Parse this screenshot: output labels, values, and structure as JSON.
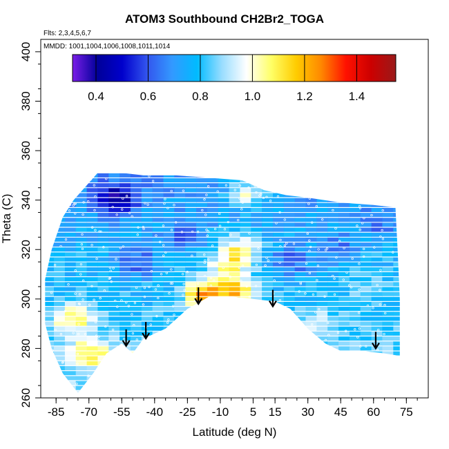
{
  "chart_data": {
    "type": "heatmap",
    "title": "ATOM3 Southbound CH2Br2_TOGA",
    "xlabel": "Latitude (deg N)",
    "ylabel": "Theta (C)",
    "flights_note": "Flts: 2,3,4,5,6,7",
    "dates_note": "MMDD: 1001,1004,1006,1008,1011,1014",
    "xlim": [
      -92,
      85
    ],
    "ylim": [
      260,
      405
    ],
    "x_ticks": [
      -85,
      -70,
      -55,
      -40,
      -25,
      -10,
      5,
      15,
      30,
      45,
      60,
      75
    ],
    "x_tick_labels": [
      "-85",
      "-70",
      "-55",
      "-40",
      "-25",
      "-10",
      "5",
      "15",
      "30",
      "45",
      "60",
      "75"
    ],
    "y_ticks": [
      260,
      280,
      300,
      320,
      340,
      360,
      380,
      400
    ],
    "y_tick_labels": [
      "260",
      "280",
      "300",
      "320",
      "340",
      "360",
      "380",
      "400"
    ],
    "colorbar": {
      "range": [
        0.31,
        1.55
      ],
      "ticks": [
        0.4,
        0.6,
        0.8,
        1.0,
        1.2,
        1.4
      ],
      "tick_labels": [
        "0.4",
        "0.6",
        "0.8",
        "1.0",
        "1.2",
        "1.4"
      ],
      "colors": [
        "#7a1ee8",
        "#000099",
        "#0000cc",
        "#3355ee",
        "#3399ff",
        "#00bbff",
        "#99ddff",
        "#ffffff",
        "#ffff66",
        "#ffcc00",
        "#ff8800",
        "#ff1100",
        "#cc0000",
        "#9a1a1a"
      ]
    },
    "domain_upper": [
      [
        -90,
        308
      ],
      [
        -87,
        320
      ],
      [
        -82,
        333
      ],
      [
        -77,
        340
      ],
      [
        -72,
        345
      ],
      [
        -66,
        351
      ],
      [
        -55,
        351
      ],
      [
        -45,
        350
      ],
      [
        -30,
        350
      ],
      [
        -15,
        349
      ],
      [
        0,
        348
      ],
      [
        10,
        344
      ],
      [
        20,
        342
      ],
      [
        30,
        341
      ],
      [
        45,
        339
      ],
      [
        60,
        338
      ],
      [
        70,
        337
      ],
      [
        71,
        320
      ],
      [
        72,
        300
      ],
      [
        72,
        277
      ]
    ],
    "domain_lower": [
      [
        -90,
        308
      ],
      [
        -90,
        290
      ],
      [
        -87,
        280
      ],
      [
        -82,
        270
      ],
      [
        -75,
        262
      ],
      [
        -68,
        270
      ],
      [
        -62,
        278
      ],
      [
        -55,
        282
      ],
      [
        -50,
        278
      ],
      [
        -45,
        284
      ],
      [
        -35,
        288
      ],
      [
        -25,
        296
      ],
      [
        -15,
        301
      ],
      [
        -5,
        301
      ],
      [
        5,
        300
      ],
      [
        15,
        299
      ],
      [
        22,
        296
      ],
      [
        30,
        288
      ],
      [
        38,
        282
      ],
      [
        45,
        279
      ],
      [
        55,
        279
      ],
      [
        65,
        278
      ],
      [
        72,
        277
      ]
    ],
    "anomaly_patches": [
      {
        "lat": -20,
        "theta": 302,
        "value": 1.2
      },
      {
        "lat": -5,
        "theta": 303,
        "value": 1.15
      },
      {
        "lat": -3,
        "theta": 320,
        "value": 1.08
      },
      {
        "lat": 0,
        "theta": 343,
        "value": 1.05
      },
      {
        "lat": -10,
        "theta": 313,
        "value": 1.0
      },
      {
        "lat": -80,
        "theta": 292,
        "value": 1.06
      },
      {
        "lat": -72,
        "theta": 278,
        "value": 1.05
      },
      {
        "lat": -45,
        "theta": 275,
        "value": 1.02
      },
      {
        "lat": -60,
        "theta": 340,
        "value": 0.45
      },
      {
        "lat": -50,
        "theta": 315,
        "value": 0.6
      },
      {
        "lat": -30,
        "theta": 325,
        "value": 0.65
      },
      {
        "lat": 20,
        "theta": 315,
        "value": 0.62
      },
      {
        "lat": 40,
        "theta": 320,
        "value": 0.65
      },
      {
        "lat": 60,
        "theta": 330,
        "value": 0.68
      },
      {
        "lat": 55,
        "theta": 305,
        "value": 0.85
      },
      {
        "lat": 30,
        "theta": 290,
        "value": 0.9
      }
    ],
    "arrows": [
      {
        "lat": -53,
        "theta": 281
      },
      {
        "lat": -44,
        "theta": 284
      },
      {
        "lat": -20,
        "theta": 298
      },
      {
        "lat": 14,
        "theta": 297
      },
      {
        "lat": 61,
        "theta": 280
      }
    ]
  }
}
